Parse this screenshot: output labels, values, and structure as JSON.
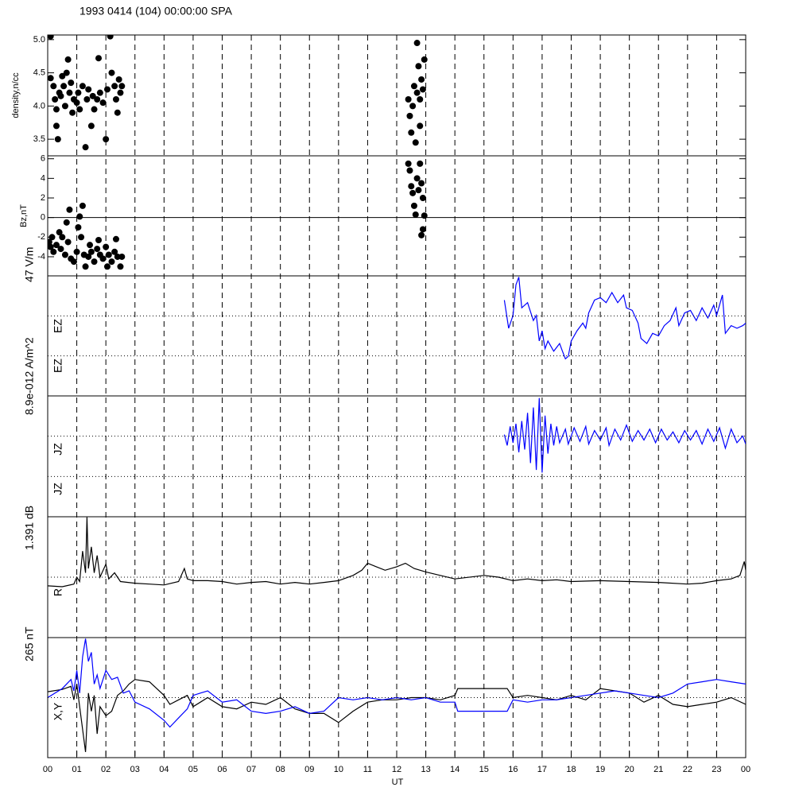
{
  "title": "1993 0414 (104) 00:00:00 SPA",
  "xaxis": {
    "xlabel": "UT",
    "xlim": [
      0,
      24
    ],
    "xticks": [
      {
        "value": 0,
        "label": "00"
      },
      {
        "value": 1,
        "label": "01"
      },
      {
        "value": 2,
        "label": "02"
      },
      {
        "value": 3,
        "label": "03"
      },
      {
        "value": 4,
        "label": "04"
      },
      {
        "value": 5,
        "label": "05"
      },
      {
        "value": 6,
        "label": "06"
      },
      {
        "value": 7,
        "label": "07"
      },
      {
        "value": 8,
        "label": "08"
      },
      {
        "value": 9,
        "label": "09"
      },
      10,
      11,
      12,
      13,
      14,
      15,
      16,
      17,
      18,
      19,
      20,
      21,
      22,
      23,
      {
        "value": 24,
        "label": "00"
      }
    ]
  },
  "chart_data": [
    {
      "type": "scatter",
      "ylabel": "density,n/cc",
      "color": "#000000",
      "ylim": [
        3.25,
        5.07
      ],
      "yticks": [
        3.5,
        {
          "value": 4.0,
          "label": "4.0"
        },
        4.5,
        {
          "value": 5.0,
          "label": "5.0"
        }
      ],
      "x": [
        0.1,
        0.1,
        0.2,
        0.25,
        0.3,
        0.3,
        0.35,
        0.4,
        0.45,
        0.5,
        0.55,
        0.6,
        0.65,
        0.7,
        0.75,
        0.8,
        0.85,
        0.9,
        1.0,
        1.05,
        1.1,
        1.2,
        1.3,
        1.35,
        1.4,
        1.5,
        1.55,
        1.6,
        1.7,
        1.75,
        1.8,
        1.9,
        2.0,
        2.05,
        2.15,
        2.2,
        2.3,
        2.35,
        2.4,
        2.45,
        2.5,
        2.55,
        12.4,
        12.45,
        12.5,
        12.55,
        12.6,
        12.65,
        12.7,
        12.7,
        12.75,
        12.8,
        12.85,
        12.9,
        12.95,
        12.8
      ],
      "values": [
        5.05,
        4.42,
        4.3,
        4.1,
        3.95,
        3.7,
        3.5,
        4.2,
        4.15,
        4.45,
        4.3,
        4.0,
        4.5,
        4.7,
        4.2,
        4.35,
        3.9,
        4.1,
        4.05,
        4.2,
        3.95,
        4.3,
        3.38,
        4.1,
        4.25,
        3.7,
        4.15,
        3.95,
        4.1,
        4.72,
        4.2,
        4.05,
        3.5,
        4.25,
        5.05,
        4.5,
        4.3,
        4.1,
        3.9,
        4.4,
        4.2,
        4.3,
        4.1,
        3.85,
        3.6,
        4.0,
        4.3,
        3.45,
        4.2,
        4.95,
        4.6,
        4.1,
        4.4,
        4.25,
        4.7,
        3.7
      ]
    },
    {
      "type": "scatter",
      "ylabel": "Bz,nT",
      "color": "#000000",
      "ylim": [
        -5.95,
        6.3
      ],
      "yticks": [
        -4,
        -2,
        0,
        2,
        4,
        6
      ],
      "x": [
        0.05,
        0.1,
        0.15,
        0.2,
        0.3,
        0.4,
        0.45,
        0.5,
        0.6,
        0.65,
        0.7,
        0.75,
        0.8,
        0.9,
        1.0,
        1.05,
        1.1,
        1.15,
        1.2,
        1.25,
        1.3,
        1.4,
        1.45,
        1.5,
        1.6,
        1.7,
        1.75,
        1.8,
        1.9,
        2.0,
        2.05,
        2.1,
        2.2,
        2.3,
        2.35,
        2.4,
        2.5,
        2.55,
        12.4,
        12.45,
        12.5,
        12.55,
        12.6,
        12.65,
        12.7,
        12.75,
        12.8,
        12.85,
        12.9,
        12.95,
        12.85,
        12.9
      ],
      "values": [
        -2.5,
        -3,
        -2,
        -3.5,
        -2.8,
        -1.5,
        -3.2,
        -2,
        -3.8,
        -0.5,
        -2.5,
        0.8,
        -4.2,
        -4.5,
        -3.5,
        -1,
        0.1,
        -2,
        1.2,
        -3.8,
        -5,
        -4,
        -2.8,
        -3.5,
        -4.5,
        -3.2,
        -2.3,
        -3.8,
        -4.2,
        -3,
        -5,
        -3.8,
        -4.5,
        -3.5,
        -2.2,
        -4,
        -5,
        -4,
        5.5,
        4.8,
        3.2,
        2.5,
        1.2,
        0.3,
        4,
        2.8,
        5.5,
        -1.8,
        2,
        0.2,
        3.5,
        -1.2
      ]
    },
    {
      "type": "line",
      "scale_label": "47 V/m",
      "labels": [
        "EZ",
        "EZ"
      ],
      "ylim": [
        -23.5,
        23.5
      ],
      "x": [
        15.7,
        15.85,
        16.0,
        16.1,
        16.2,
        16.3,
        16.5,
        16.7,
        16.8,
        16.9,
        17.0,
        17.1,
        17.2,
        17.4,
        17.6,
        17.7,
        17.8,
        17.9,
        18.0,
        18.2,
        18.4,
        18.5,
        18.6,
        18.8,
        19.0,
        19.2,
        19.4,
        19.6,
        19.8,
        19.9,
        20.1,
        20.3,
        20.4,
        20.6,
        20.8,
        21.0,
        21.2,
        21.4,
        21.6,
        21.7,
        21.9,
        22.1,
        22.3,
        22.5,
        22.7,
        22.9,
        23.0,
        23.2,
        23.3,
        23.5,
        23.7,
        23.9,
        24.0
      ],
      "series": [
        {
          "color": "#0000ff",
          "values": [
            14,
            3,
            8,
            20,
            23,
            11,
            13,
            6,
            8,
            -2,
            2,
            -5,
            -2,
            -6,
            -3,
            -6,
            -9,
            -8,
            -2,
            2,
            5,
            3,
            9,
            14,
            15,
            13,
            17,
            13,
            16,
            11,
            10,
            5,
            -1,
            -3,
            1,
            0,
            4,
            6,
            11,
            4,
            9,
            10,
            6,
            11,
            7,
            12,
            8,
            16,
            1,
            4,
            3,
            4,
            5
          ]
        }
      ]
    },
    {
      "type": "line",
      "scale_label": "8.9e-012 A/m^2",
      "labels": [
        "JZ",
        "JZ"
      ],
      "ylim": [
        -4.45e-12,
        4.45e-12
      ],
      "x": [
        15.7,
        15.8,
        15.9,
        16.0,
        16.1,
        16.2,
        16.3,
        16.4,
        16.5,
        16.6,
        16.7,
        16.8,
        16.9,
        17.0,
        17.1,
        17.2,
        17.3,
        17.4,
        17.5,
        17.6,
        17.8,
        17.9,
        18.1,
        18.3,
        18.5,
        18.6,
        18.8,
        19.0,
        19.2,
        19.3,
        19.5,
        19.7,
        19.9,
        20.1,
        20.3,
        20.5,
        20.7,
        20.9,
        21.1,
        21.3,
        21.5,
        21.7,
        21.9,
        22.1,
        22.3,
        22.5,
        22.7,
        22.9,
        23.1,
        23.3,
        23.5,
        23.7,
        23.9,
        24.0
      ],
      "series": [
        {
          "color": "#0000ff",
          "values": [
            1.6e-12,
            8e-13,
            2.2e-12,
            1e-12,
            2.4e-12,
            3e-13,
            2.6e-12,
            5e-13,
            3.2e-12,
            -5e-13,
            3.6e-12,
            -1e-12,
            4.3e-12,
            -1.2e-12,
            3e-12,
            2e-13,
            2.4e-12,
            8e-13,
            2.2e-12,
            1e-12,
            2e-12,
            9e-13,
            2.1e-12,
            1.1e-12,
            2.2e-12,
            9e-13,
            1.9e-12,
            1.2e-12,
            2.1e-12,
            8e-13,
            2e-12,
            1.2e-12,
            2.3e-12,
            1.1e-12,
            1.9e-12,
            1.2e-12,
            2e-12,
            1e-12,
            2e-12,
            1.2e-12,
            1.8e-12,
            1e-12,
            1.9e-12,
            1.2e-12,
            1.9e-12,
            9e-13,
            2e-12,
            1.1e-12,
            2.1e-12,
            6e-13,
            2e-12,
            1e-12,
            1.5e-12,
            9e-13
          ]
        }
      ]
    },
    {
      "type": "line",
      "scale_label": "1.391 dB",
      "labels": [
        "R"
      ],
      "ylim": [
        -0.6955,
        0.6955
      ],
      "x": [
        0,
        0.5,
        0.9,
        1.0,
        1.1,
        1.2,
        1.3,
        1.35,
        1.4,
        1.5,
        1.6,
        1.7,
        1.8,
        2.0,
        2.1,
        2.3,
        2.5,
        3.0,
        3.5,
        4.0,
        4.5,
        4.7,
        4.8,
        5.0,
        5.5,
        6.0,
        6.5,
        7.0,
        7.5,
        8.0,
        8.5,
        9.0,
        9.5,
        10.0,
        10.5,
        10.8,
        11.0,
        11.3,
        11.6,
        12.0,
        12.3,
        12.6,
        13.0,
        13.5,
        14.0,
        15.0,
        15.5,
        16.0,
        16.5,
        17.0,
        17.5,
        18.0,
        19.0,
        20.0,
        21.0,
        22.0,
        22.5,
        23.0,
        23.5,
        23.8,
        23.95,
        24.0
      ],
      "series": [
        {
          "color": "#000000",
          "values": [
            -0.1,
            -0.11,
            -0.08,
            0,
            -0.05,
            0.3,
            0.05,
            0.69,
            0.1,
            0.35,
            0.05,
            0.25,
            0,
            0.15,
            -0.02,
            0.05,
            -0.05,
            -0.07,
            -0.08,
            -0.09,
            -0.05,
            0.1,
            -0.02,
            -0.04,
            -0.04,
            -0.05,
            -0.08,
            -0.06,
            -0.05,
            -0.08,
            -0.06,
            -0.08,
            -0.06,
            -0.04,
            0.02,
            0.08,
            0.16,
            0.12,
            0.08,
            0.12,
            0.16,
            0.1,
            0.06,
            0.02,
            -0.02,
            0.02,
            0,
            -0.04,
            -0.02,
            -0.04,
            -0.03,
            -0.05,
            -0.04,
            -0.05,
            -0.06,
            -0.08,
            -0.07,
            -0.04,
            -0.02,
            0.02,
            0.18,
            0.08
          ]
        }
      ]
    },
    {
      "type": "line",
      "scale_label": "265 nT",
      "labels": [
        "X,Y"
      ],
      "ylim": [
        -132.5,
        132.5
      ],
      "x": [
        0,
        0.5,
        0.8,
        0.9,
        1.0,
        1.1,
        1.2,
        1.3,
        1.4,
        1.5,
        1.6,
        1.7,
        1.8,
        2.0,
        2.2,
        2.4,
        2.6,
        2.8,
        3.0,
        3.5,
        4.0,
        4.2,
        4.5,
        4.8,
        5.0,
        5.5,
        6.0,
        6.5,
        7.0,
        7.5,
        8.0,
        8.5,
        9.0,
        9.5,
        10.0,
        10.5,
        11.0,
        11.5,
        12.0,
        12.5,
        13.0,
        13.5,
        14.0,
        14.1,
        15.0,
        15.8,
        16.0,
        16.5,
        17.0,
        17.5,
        18.0,
        18.5,
        19.0,
        19.5,
        20.0,
        20.5,
        21.0,
        21.5,
        22.0,
        22.5,
        23.0,
        23.5,
        24.0
      ],
      "series": [
        {
          "color": "#000000",
          "values": [
            13,
            18,
            25,
            -5,
            30,
            -20,
            -70,
            -120,
            10,
            -30,
            5,
            -80,
            -20,
            -40,
            -30,
            5,
            15,
            30,
            40,
            35,
            5,
            -15,
            -5,
            5,
            -20,
            0,
            -20,
            -25,
            -10,
            -15,
            0,
            -25,
            -35,
            -35,
            -55,
            -30,
            -10,
            -5,
            -5,
            0,
            0,
            -5,
            5,
            20,
            20,
            20,
            0,
            5,
            0,
            -5,
            5,
            -5,
            20,
            15,
            10,
            -10,
            5,
            -15,
            -20,
            -15,
            -10,
            0,
            -15
          ]
        },
        {
          "color": "#0000ff",
          "values": [
            0,
            20,
            40,
            15,
            60,
            10,
            90,
            130,
            80,
            100,
            30,
            50,
            20,
            60,
            40,
            45,
            10,
            15,
            -10,
            -25,
            -50,
            -65,
            -45,
            -25,
            5,
            15,
            -10,
            -5,
            -30,
            -35,
            -30,
            -20,
            -35,
            -30,
            0,
            -5,
            0,
            -5,
            0,
            -5,
            0,
            -10,
            -10,
            -30,
            -30,
            -30,
            -5,
            -10,
            -5,
            -5,
            0,
            5,
            10,
            15,
            10,
            5,
            0,
            10,
            30,
            35,
            40,
            35,
            30
          ]
        }
      ]
    }
  ]
}
